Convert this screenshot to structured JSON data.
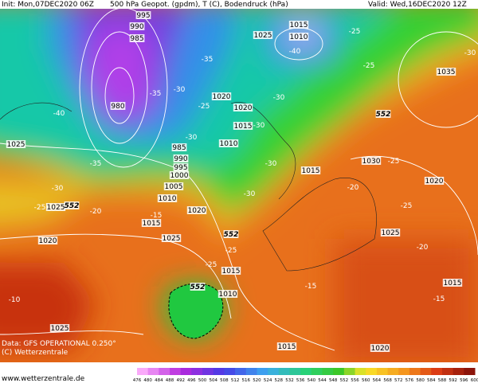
{
  "header": {
    "left": "Init: Mon,07DEC2020 06Z",
    "middle": "500 hPa Geopot. (gpdm), T (C), Bodendruck (hPa)",
    "right": "Valid: Wed,16DEC2020 12Z"
  },
  "footer": {
    "source": "Data: GFS OPERATIONAL 0.250°",
    "copyright": "(C) Wetterzentrale",
    "url": "www.wetterzentrale.de"
  },
  "colorbar": {
    "labels": [
      "476",
      "480",
      "484",
      "488",
      "492",
      "496",
      "500",
      "504",
      "508",
      "512",
      "516",
      "520",
      "524",
      "528",
      "532",
      "536",
      "540",
      "544",
      "548",
      "552",
      "556",
      "560",
      "564",
      "568",
      "572",
      "576",
      "580",
      "584",
      "588",
      "592",
      "596",
      "600"
    ]
  },
  "map": {
    "isobar_labels": [
      "995",
      "990",
      "985",
      "980",
      "1025",
      "1015",
      "1010",
      "1020",
      "1020",
      "1015",
      "1010",
      "985",
      "990",
      "995",
      "1000",
      "1005",
      "1010",
      "1025",
      "1025",
      "1020",
      "1015",
      "1025",
      "1020",
      "1015",
      "1010",
      "1025",
      "1015",
      "1020",
      "1015",
      "1030",
      "1020",
      "1025",
      "1015",
      "1035"
    ],
    "temperature_labels": [
      "-40",
      "-35",
      "-30",
      "-35",
      "-25",
      "-30",
      "-30",
      "-30",
      "-40",
      "-35",
      "-30",
      "-25",
      "-20",
      "-15",
      "-30",
      "-30",
      "-25",
      "-25",
      "-25",
      "-25",
      "-30",
      "-25",
      "-20",
      "-25",
      "-20",
      "-15",
      "-15",
      "-10"
    ],
    "geopotential_labels": [
      "552",
      "552",
      "552",
      "552"
    ]
  }
}
